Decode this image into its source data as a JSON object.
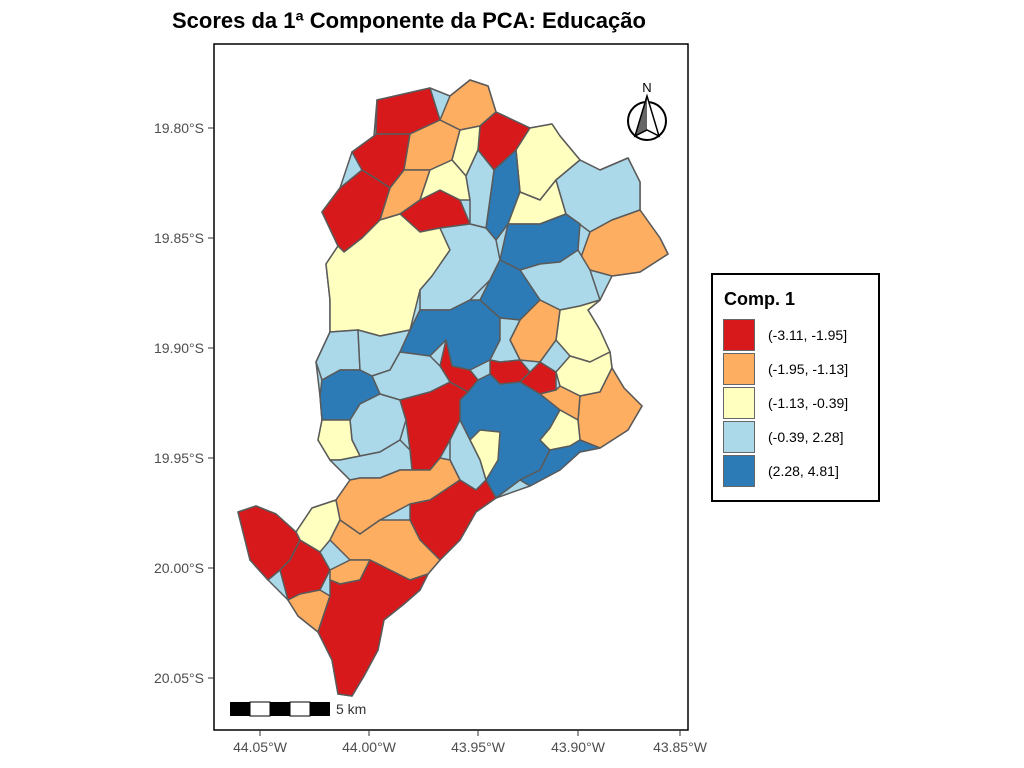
{
  "title": "Scores da 1ª Componente da PCA: Educação",
  "axes": {
    "y_ticks": [
      "19.80°S",
      "19.85°S",
      "19.90°S",
      "19.95°S",
      "20.00°S",
      "20.05°S"
    ],
    "x_ticks": [
      "44.05°W",
      "44.00°W",
      "43.95°W",
      "43.90°W",
      "43.85°W"
    ]
  },
  "north_arrow": {
    "label": "N"
  },
  "scale_bar": {
    "label": "5 km"
  },
  "legend": {
    "title": "Comp. 1",
    "items": [
      {
        "label": "(-3.11, -1.95]",
        "color": "#d7191c"
      },
      {
        "label": "(-1.95, -1.13]",
        "color": "#fdae61"
      },
      {
        "label": "(-1.13, -0.39]",
        "color": "#ffffbf"
      },
      {
        "label": "(-0.39, 2.28]",
        "color": "#abd9e9"
      },
      {
        "label": "(2.28, 4.81]",
        "color": "#2c7bb6"
      }
    ]
  },
  "colors": {
    "class1": "#d7191c",
    "class2": "#fdae61",
    "class3": "#ffffbf",
    "class4": "#abd9e9",
    "class5": "#2c7bb6",
    "border": "#5a5a5a"
  }
}
